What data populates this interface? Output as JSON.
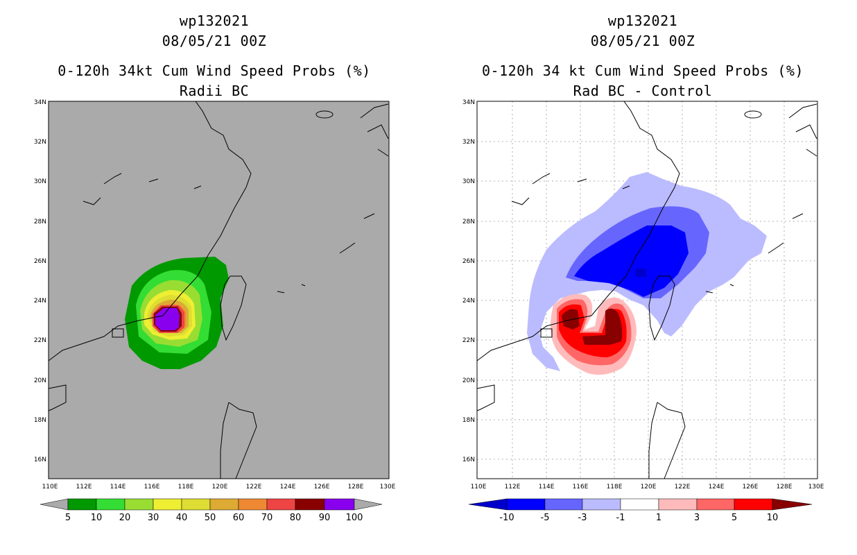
{
  "panels": [
    {
      "storm_id": "wp132021",
      "datetime": "08/05/21 00Z",
      "title": "0-120h 34kt Cum Wind Speed Probs (%)",
      "subtitle": "Radii BC",
      "colorbar_labels": [
        "5",
        "10",
        "20",
        "30",
        "40",
        "50",
        "60",
        "70",
        "80",
        "90",
        "100"
      ],
      "colorbar_colors": [
        "#009900",
        "#33dd33",
        "#99dd33",
        "#eeee33",
        "#dddd33",
        "#ddaa33",
        "#ee8833",
        "#ee4444",
        "#880000",
        "#8800ee"
      ],
      "background": "#aaaaaa"
    },
    {
      "storm_id": "wp132021",
      "datetime": "08/05/21 00Z",
      "title": "0-120h 34 kt Cum Wind Speed Probs (%)",
      "subtitle": "Rad BC - Control",
      "colorbar_labels": [
        "-10",
        "-5",
        "-3",
        "-1",
        "1",
        "3",
        "5",
        "10"
      ],
      "colorbar_colors": [
        "#0000cc",
        "#0000ff",
        "#6666ff",
        "#bbbbff",
        "#ffffff",
        "#ffbbbb",
        "#ff6666",
        "#ff0000",
        "#880000"
      ],
      "background": "#ffffff"
    }
  ],
  "axes": {
    "lat_labels": [
      "34N",
      "32N",
      "30N",
      "28N",
      "26N",
      "24N",
      "22N",
      "20N",
      "18N",
      "16N"
    ],
    "lon_labels": [
      "110E",
      "112E",
      "114E",
      "116E",
      "118E",
      "120E",
      "122E",
      "124E",
      "126E",
      "128E",
      "130E"
    ]
  }
}
